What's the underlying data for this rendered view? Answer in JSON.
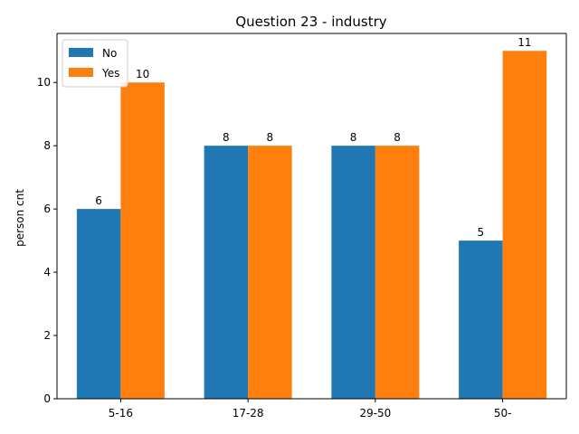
{
  "chart_data": {
    "type": "bar",
    "title": "Question 23 - industry",
    "xlabel": "",
    "ylabel": "person cnt",
    "categories": [
      "5-16",
      "17-28",
      "29-50",
      "50-"
    ],
    "series": [
      {
        "name": "No",
        "values": [
          6,
          8,
          8,
          5
        ],
        "color": "#1f77b4"
      },
      {
        "name": "Yes",
        "values": [
          10,
          8,
          8,
          11
        ],
        "color": "#ff7f0e"
      }
    ],
    "ylim": [
      0,
      11.55
    ],
    "yticks": [
      0,
      2,
      4,
      6,
      8,
      10
    ],
    "grid": false,
    "legend_position": "top-left"
  }
}
